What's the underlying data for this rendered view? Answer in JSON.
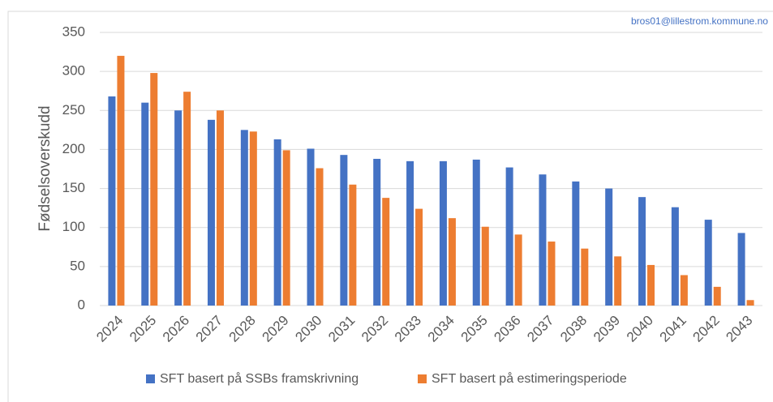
{
  "chart_data": {
    "type": "bar",
    "watermark": "bros01@lillestrom.kommune.no",
    "y_label": "Fødselsoverskudd",
    "categories": [
      "2024",
      "2025",
      "2026",
      "2027",
      "2028",
      "2029",
      "2030",
      "2031",
      "2032",
      "2033",
      "2034",
      "2035",
      "2036",
      "2037",
      "2038",
      "2039",
      "2040",
      "2041",
      "2042",
      "2043"
    ],
    "series": [
      {
        "name": "SFT basert på SSBs framskrivning",
        "color": "#4472c4",
        "values": [
          268,
          260,
          250,
          238,
          225,
          213,
          201,
          193,
          188,
          185,
          185,
          187,
          177,
          168,
          159,
          150,
          139,
          126,
          110,
          93
        ]
      },
      {
        "name": "SFT basert på estimeringsperiode",
        "color": "#ed7d31",
        "values": [
          320,
          298,
          274,
          250,
          223,
          199,
          176,
          155,
          138,
          124,
          112,
          101,
          91,
          82,
          73,
          63,
          52,
          39,
          24,
          7
        ]
      }
    ],
    "ylim": [
      0,
      350
    ],
    "yticks": [
      0,
      50,
      100,
      150,
      200,
      250,
      300,
      350
    ],
    "grid": true,
    "legend": "bottom"
  }
}
